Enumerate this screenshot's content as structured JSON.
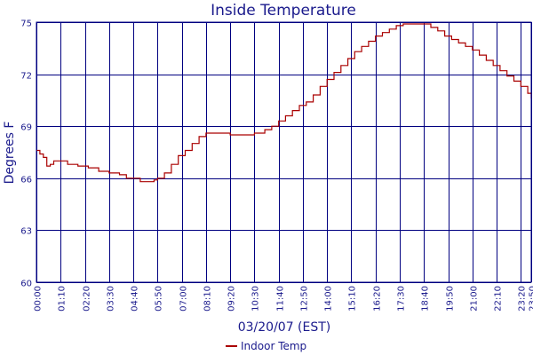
{
  "chart_data": {
    "type": "line",
    "title": "Inside Temperature",
    "xlabel": "03/20/07 (EST)",
    "ylabel": "Degrees F",
    "xlim": [
      "00:00",
      "23:50"
    ],
    "ylim": [
      60,
      75
    ],
    "y_ticks": [
      "60",
      "63",
      "66",
      "69",
      "72",
      "75"
    ],
    "x_ticks": [
      "00:00",
      "01:10",
      "02:20",
      "03:30",
      "04:40",
      "05:50",
      "07:00",
      "08:10",
      "09:20",
      "10:30",
      "11:40",
      "12:50",
      "14:00",
      "15:10",
      "16:20",
      "17:30",
      "18:40",
      "19:50",
      "21:00",
      "22:10",
      "23:20",
      "23:50"
    ],
    "grid": true,
    "legend_position": "bottom-center",
    "series": [
      {
        "name": "Indoor Temp",
        "color": "#aa0000",
        "points": [
          [
            "00:00",
            67.6
          ],
          [
            "00:10",
            67.4
          ],
          [
            "00:20",
            67.2
          ],
          [
            "00:30",
            66.7
          ],
          [
            "00:40",
            66.8
          ],
          [
            "00:50",
            67.0
          ],
          [
            "01:10",
            67.0
          ],
          [
            "01:30",
            66.8
          ],
          [
            "02:00",
            66.7
          ],
          [
            "02:30",
            66.6
          ],
          [
            "03:00",
            66.4
          ],
          [
            "03:30",
            66.3
          ],
          [
            "04:00",
            66.2
          ],
          [
            "04:20",
            66.0
          ],
          [
            "04:50",
            66.0
          ],
          [
            "05:00",
            65.8
          ],
          [
            "05:30",
            65.8
          ],
          [
            "05:40",
            65.9
          ],
          [
            "05:50",
            66.0
          ],
          [
            "06:10",
            66.3
          ],
          [
            "06:30",
            66.8
          ],
          [
            "06:50",
            67.3
          ],
          [
            "07:10",
            67.6
          ],
          [
            "07:30",
            68.0
          ],
          [
            "07:50",
            68.4
          ],
          [
            "08:10",
            68.6
          ],
          [
            "08:30",
            68.6
          ],
          [
            "09:00",
            68.6
          ],
          [
            "09:20",
            68.5
          ],
          [
            "09:50",
            68.5
          ],
          [
            "10:10",
            68.5
          ],
          [
            "10:30",
            68.6
          ],
          [
            "11:00",
            68.8
          ],
          [
            "11:20",
            69.0
          ],
          [
            "11:40",
            69.3
          ],
          [
            "12:00",
            69.6
          ],
          [
            "12:20",
            69.9
          ],
          [
            "12:40",
            70.2
          ],
          [
            "13:00",
            70.4
          ],
          [
            "13:20",
            70.8
          ],
          [
            "13:40",
            71.3
          ],
          [
            "14:00",
            71.7
          ],
          [
            "14:20",
            72.1
          ],
          [
            "14:40",
            72.5
          ],
          [
            "15:00",
            72.9
          ],
          [
            "15:20",
            73.3
          ],
          [
            "15:40",
            73.6
          ],
          [
            "16:00",
            73.9
          ],
          [
            "16:20",
            74.2
          ],
          [
            "16:40",
            74.4
          ],
          [
            "17:00",
            74.6
          ],
          [
            "17:20",
            74.8
          ],
          [
            "17:40",
            74.9
          ],
          [
            "18:00",
            74.9
          ],
          [
            "18:20",
            74.9
          ],
          [
            "18:40",
            74.9
          ],
          [
            "19:00",
            74.7
          ],
          [
            "19:20",
            74.5
          ],
          [
            "19:40",
            74.2
          ],
          [
            "20:00",
            74.0
          ],
          [
            "20:20",
            73.8
          ],
          [
            "20:40",
            73.6
          ],
          [
            "21:00",
            73.4
          ],
          [
            "21:20",
            73.1
          ],
          [
            "21:40",
            72.8
          ],
          [
            "22:00",
            72.5
          ],
          [
            "22:20",
            72.2
          ],
          [
            "22:40",
            71.9
          ],
          [
            "23:00",
            71.6
          ],
          [
            "23:20",
            71.3
          ],
          [
            "23:40",
            70.9
          ],
          [
            "23:50",
            70.6
          ]
        ]
      }
    ]
  }
}
